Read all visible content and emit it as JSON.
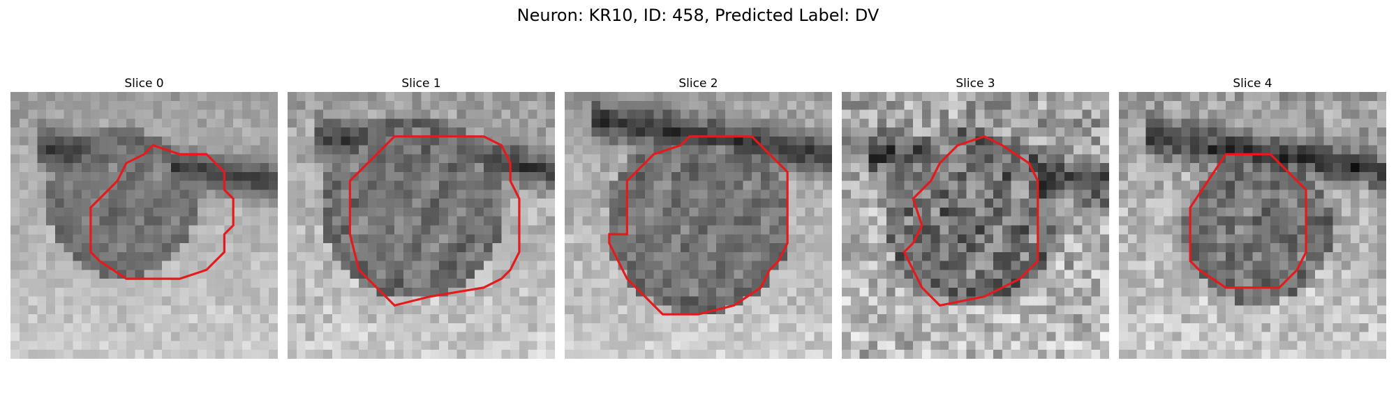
{
  "title": "Neuron: KR10, ID: 458, Predicted Label: DV",
  "colors": {
    "contour": "#e41a1c"
  },
  "panels": [
    {
      "title": "Slice 0"
    },
    {
      "title": "Slice 1"
    },
    {
      "title": "Slice 2"
    },
    {
      "title": "Slice 3"
    },
    {
      "title": "Slice 4"
    }
  ]
}
